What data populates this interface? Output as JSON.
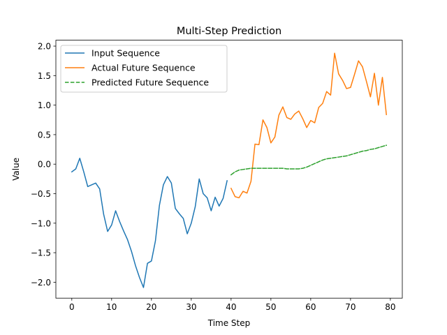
{
  "chart_data": {
    "type": "line",
    "title": "Multi-Step Prediction",
    "xlabel": "Time Step",
    "ylabel": "Value",
    "xlim": [
      -4,
      83
    ],
    "ylim": [
      -2.27,
      2.1
    ],
    "xticks": [
      0,
      10,
      20,
      30,
      40,
      50,
      60,
      70,
      80
    ],
    "yticks": [
      -2.0,
      -1.5,
      -1.0,
      -0.5,
      0.0,
      0.5,
      1.0,
      1.5,
      2.0
    ],
    "ytick_labels": [
      "−2.0",
      "−1.5",
      "−1.0",
      "−0.5",
      "0.0",
      "0.5",
      "1.0",
      "1.5",
      "2.0"
    ],
    "legend_position": "upper left",
    "series": [
      {
        "name": "Input Sequence",
        "color": "#1f77b4",
        "style": "solid",
        "x": [
          0,
          1,
          2,
          3,
          4,
          5,
          6,
          7,
          8,
          9,
          10,
          11,
          12,
          13,
          14,
          15,
          16,
          17,
          18,
          19,
          20,
          21,
          22,
          23,
          24,
          25,
          26,
          27,
          28,
          29,
          30,
          31,
          32,
          33,
          34,
          35,
          36,
          37,
          38,
          39
        ],
        "y": [
          -0.13,
          -0.08,
          0.1,
          -0.13,
          -0.38,
          -0.35,
          -0.32,
          -0.42,
          -0.85,
          -1.14,
          -1.03,
          -0.79,
          -0.97,
          -1.13,
          -1.28,
          -1.48,
          -1.72,
          -1.92,
          -2.09,
          -1.68,
          -1.64,
          -1.3,
          -0.7,
          -0.35,
          -0.21,
          -0.32,
          -0.75,
          -0.84,
          -0.92,
          -1.18,
          -1.0,
          -0.72,
          -0.25,
          -0.5,
          -0.57,
          -0.79,
          -0.56,
          -0.71,
          -0.58,
          -0.28
        ]
      },
      {
        "name": "Actual Future Sequence",
        "color": "#ff7f0e",
        "style": "solid",
        "x": [
          40,
          41,
          42,
          43,
          44,
          45,
          46,
          47,
          48,
          49,
          50,
          51,
          52,
          53,
          54,
          55,
          56,
          57,
          58,
          59,
          60,
          61,
          62,
          63,
          64,
          65,
          66,
          67,
          68,
          69,
          70,
          71,
          72,
          73,
          74,
          75,
          76,
          77,
          78,
          79
        ],
        "y": [
          -0.41,
          -0.55,
          -0.57,
          -0.46,
          -0.49,
          -0.29,
          0.34,
          0.33,
          0.75,
          0.62,
          0.36,
          0.46,
          0.83,
          0.97,
          0.79,
          0.76,
          0.85,
          0.9,
          0.77,
          0.62,
          0.74,
          0.7,
          0.96,
          1.03,
          1.23,
          1.17,
          1.88,
          1.53,
          1.42,
          1.28,
          1.3,
          1.52,
          1.75,
          1.65,
          1.4,
          1.14,
          1.54,
          1.0,
          1.47,
          0.84
        ]
      },
      {
        "name": "Predicted Future Sequence",
        "color": "#2ca02c",
        "style": "dashed",
        "x": [
          40,
          41,
          42,
          43,
          44,
          45,
          46,
          47,
          48,
          49,
          50,
          51,
          52,
          53,
          54,
          55,
          56,
          57,
          58,
          59,
          60,
          61,
          62,
          63,
          64,
          65,
          66,
          67,
          68,
          69,
          70,
          71,
          72,
          73,
          74,
          75,
          76,
          77,
          78,
          79
        ],
        "y": [
          -0.18,
          -0.13,
          -0.1,
          -0.09,
          -0.08,
          -0.07,
          -0.07,
          -0.07,
          -0.07,
          -0.07,
          -0.07,
          -0.07,
          -0.07,
          -0.07,
          -0.08,
          -0.08,
          -0.08,
          -0.08,
          -0.07,
          -0.05,
          -0.02,
          0.01,
          0.04,
          0.07,
          0.09,
          0.1,
          0.11,
          0.12,
          0.13,
          0.14,
          0.16,
          0.18,
          0.2,
          0.22,
          0.23,
          0.25,
          0.26,
          0.28,
          0.3,
          0.32
        ]
      }
    ]
  }
}
